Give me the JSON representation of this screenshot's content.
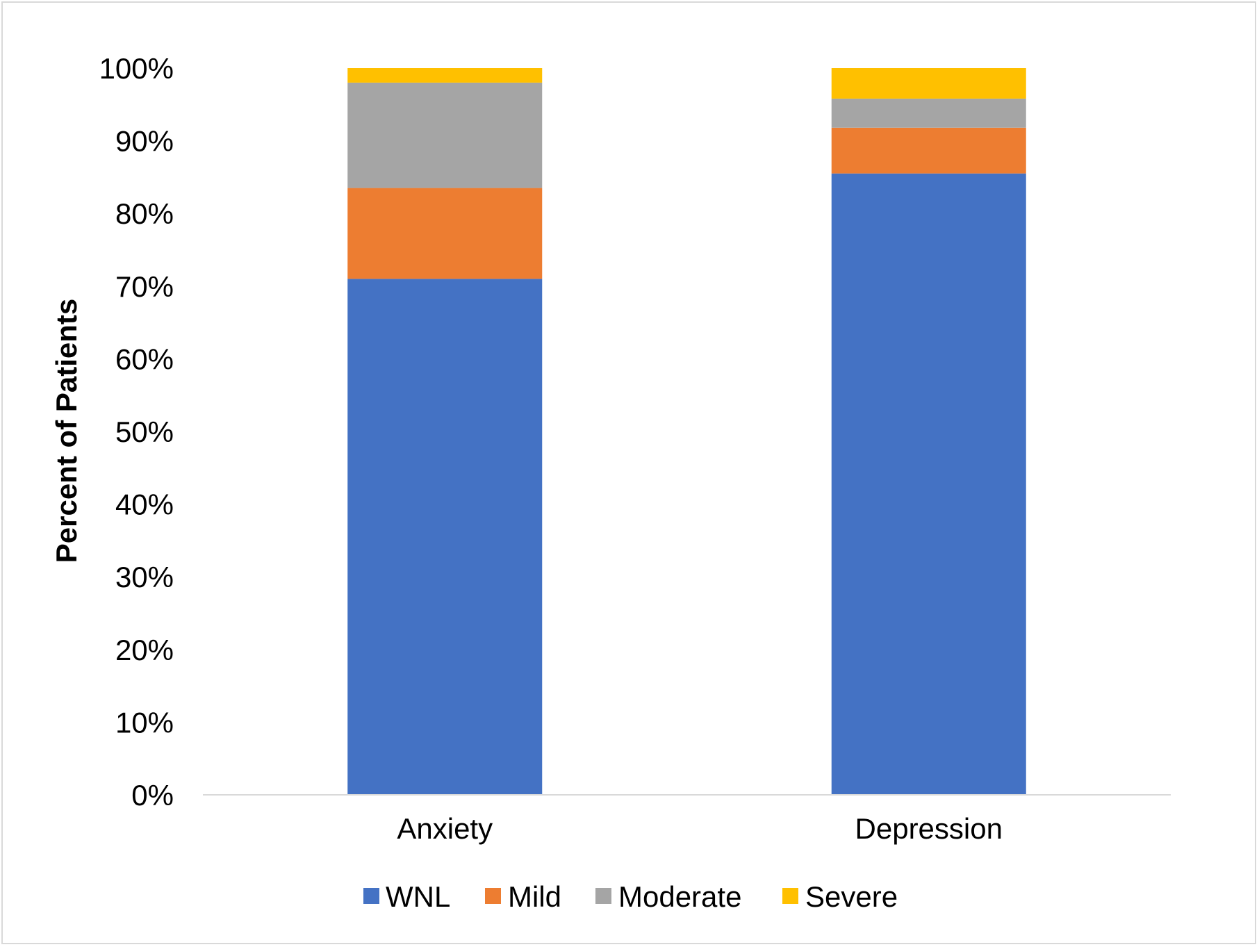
{
  "chart_data": {
    "type": "bar",
    "stacked": true,
    "title": "",
    "xlabel": "",
    "ylabel": "Percent of Patients",
    "categories": [
      "Anxiety",
      "Depression"
    ],
    "series": [
      {
        "name": "WNL",
        "color": "#4472C4",
        "values": [
          71,
          85.5
        ]
      },
      {
        "name": "Mild",
        "color": "#ED7D31",
        "values": [
          12.5,
          6.3
        ]
      },
      {
        "name": "Moderate",
        "color": "#A5A5A5",
        "values": [
          14.5,
          4
        ]
      },
      {
        "name": "Severe",
        "color": "#FFC000",
        "values": [
          2,
          4.2
        ]
      }
    ],
    "ylim": [
      0,
      100
    ],
    "yticks": [
      0,
      10,
      20,
      30,
      40,
      50,
      60,
      70,
      80,
      90,
      100
    ],
    "ytick_labels": [
      "0%",
      "10%",
      "20%",
      "30%",
      "40%",
      "50%",
      "60%",
      "70%",
      "80%",
      "90%",
      "100%"
    ],
    "grid": false,
    "legend_position": "bottom"
  }
}
